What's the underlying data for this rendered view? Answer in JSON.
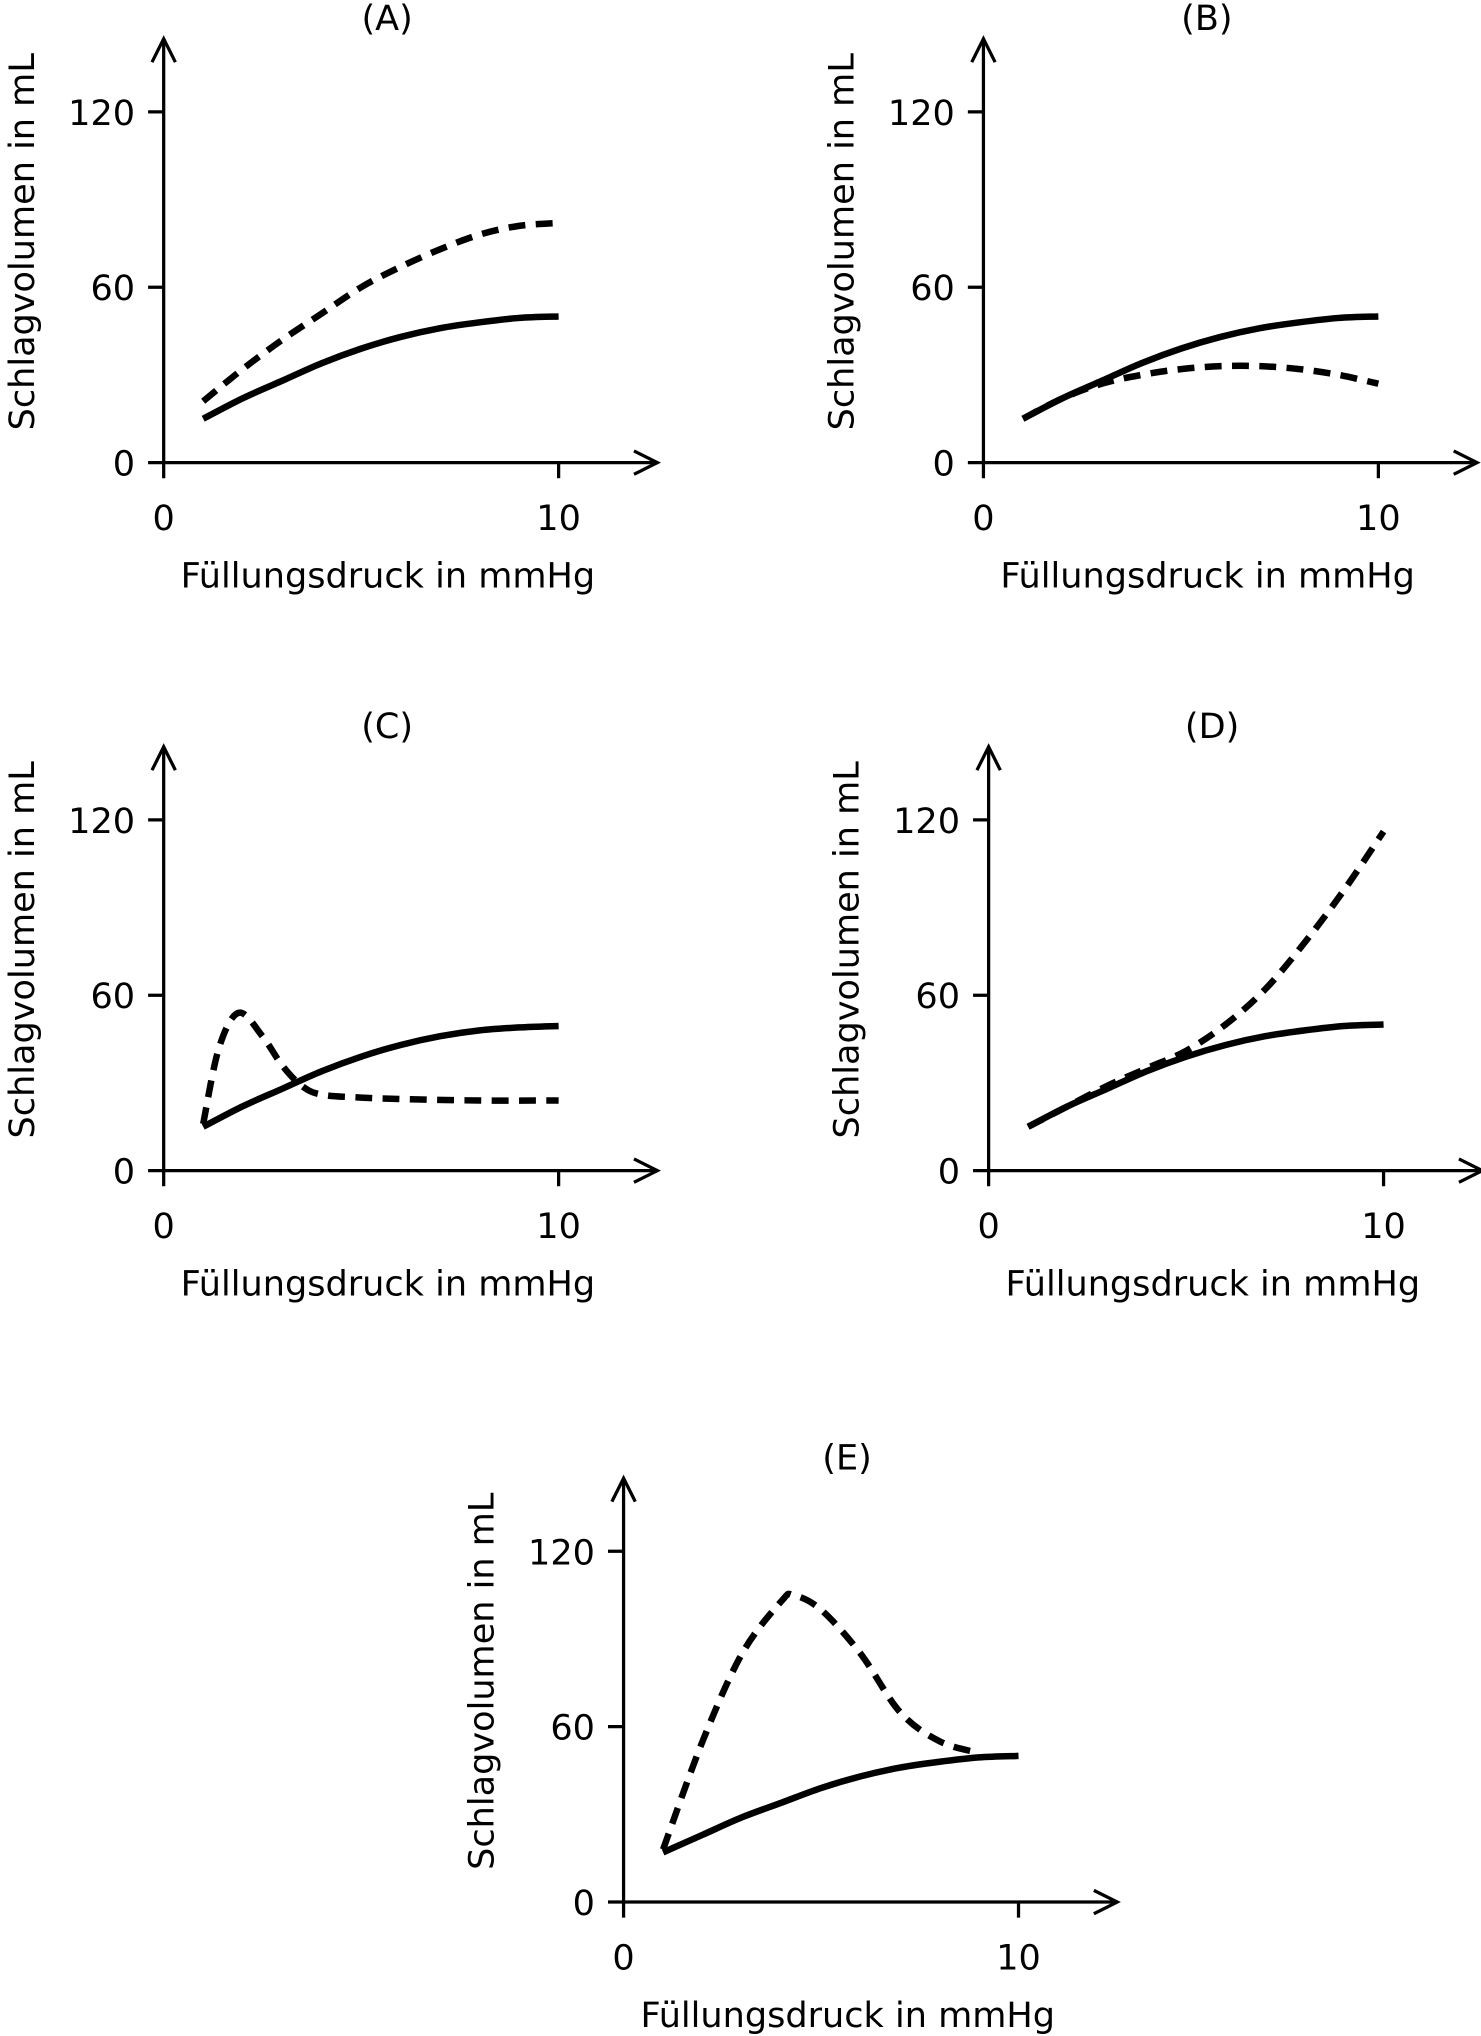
{
  "chart_data": [
    {
      "type": "line",
      "title": "(A)",
      "xlabel": "Füllungsdruck in mmHg",
      "ylabel": "Schlagvolumen in mL",
      "xticks": [
        "0",
        "10"
      ],
      "yticks": [
        "0",
        "60",
        "120"
      ],
      "xlim": [
        0,
        12.5
      ],
      "ylim": [
        0,
        145
      ],
      "grid": false,
      "series": [
        {
          "style": "solid",
          "x": [
            1,
            2,
            3,
            4,
            5,
            6,
            7,
            8,
            9,
            10
          ],
          "y": [
            15,
            22,
            28,
            34,
            39,
            43,
            46,
            48,
            49.5,
            50
          ]
        },
        {
          "style": "dashed",
          "x": [
            1,
            2,
            3,
            4,
            5,
            6,
            7,
            8,
            9,
            10
          ],
          "y": [
            21,
            32,
            42,
            51,
            60,
            67,
            73,
            78,
            81,
            82
          ]
        }
      ]
    },
    {
      "type": "line",
      "title": "(B)",
      "xlabel": "Füllungsdruck in mmHg",
      "ylabel": "Schlagvolumen in mL",
      "xticks": [
        "0",
        "10"
      ],
      "yticks": [
        "0",
        "60",
        "120"
      ],
      "xlim": [
        0,
        12.5
      ],
      "ylim": [
        0,
        145
      ],
      "grid": false,
      "series": [
        {
          "style": "solid",
          "x": [
            1,
            2,
            3,
            4,
            5,
            6,
            7,
            8,
            9,
            10
          ],
          "y": [
            15,
            22,
            28,
            34,
            39,
            43,
            46,
            48,
            49.5,
            50
          ]
        },
        {
          "style": "dashed",
          "x": [
            1,
            2,
            3,
            4,
            5,
            6,
            7,
            8,
            9,
            10
          ],
          "y": [
            15,
            22,
            27,
            30,
            32,
            33,
            33,
            32,
            30,
            27
          ]
        }
      ]
    },
    {
      "type": "line",
      "title": "(C)",
      "xlabel": "Füllungsdruck in mmHg",
      "ylabel": "Schlagvolumen in mL",
      "xticks": [
        "0",
        "10"
      ],
      "yticks": [
        "0",
        "60",
        "120"
      ],
      "xlim": [
        0,
        12.5
      ],
      "ylim": [
        0,
        145
      ],
      "grid": false,
      "series": [
        {
          "style": "solid",
          "x": [
            1,
            2,
            3,
            4,
            5,
            6,
            7,
            8,
            9,
            10
          ],
          "y": [
            15,
            22,
            28,
            34,
            39,
            43,
            46,
            48,
            49,
            49.5
          ]
        },
        {
          "style": "dashed",
          "x": [
            1,
            1.4,
            1.9,
            2.5,
            3,
            3.5,
            4,
            5,
            6,
            8,
            10
          ],
          "y": [
            16,
            42,
            54,
            46,
            36,
            29,
            26,
            25,
            24.5,
            24,
            24
          ]
        }
      ]
    },
    {
      "type": "line",
      "title": "(D)",
      "xlabel": "Füllungsdruck in mmHg",
      "ylabel": "Schlagvolumen in mL",
      "xticks": [
        "0",
        "10"
      ],
      "yticks": [
        "0",
        "60",
        "120"
      ],
      "xlim": [
        0,
        12.5
      ],
      "ylim": [
        0,
        145
      ],
      "grid": false,
      "series": [
        {
          "style": "solid",
          "x": [
            1,
            2,
            3,
            4,
            5,
            6,
            7,
            8,
            9,
            10
          ],
          "y": [
            15,
            22,
            28,
            34,
            39,
            43,
            46,
            48,
            49.5,
            50
          ]
        },
        {
          "style": "dashed",
          "x": [
            1,
            2,
            3,
            4,
            5,
            6,
            7,
            8,
            9,
            10
          ],
          "y": [
            15,
            22,
            29,
            35,
            41,
            50,
            62,
            78,
            96,
            116
          ]
        }
      ]
    },
    {
      "type": "line",
      "title": "(E)",
      "xlabel": "Füllungsdruck in mmHg",
      "ylabel": "Schlagvolumen in mL",
      "xticks": [
        "0",
        "10"
      ],
      "yticks": [
        "0",
        "60",
        "120"
      ],
      "xlim": [
        0,
        12.5
      ],
      "ylim": [
        0,
        145
      ],
      "grid": false,
      "series": [
        {
          "style": "solid",
          "x": [
            1,
            2,
            3,
            4,
            5,
            6,
            7,
            8,
            9,
            10
          ],
          "y": [
            17,
            23,
            29,
            34,
            39,
            43,
            46,
            48,
            49.5,
            50
          ]
        },
        {
          "style": "dashed",
          "x": [
            1,
            2,
            3,
            4,
            4.3,
            5,
            6,
            7,
            8,
            9
          ],
          "y": [
            18,
            55,
            85,
            103,
            105,
            100,
            85,
            65,
            55,
            51
          ]
        }
      ]
    }
  ]
}
